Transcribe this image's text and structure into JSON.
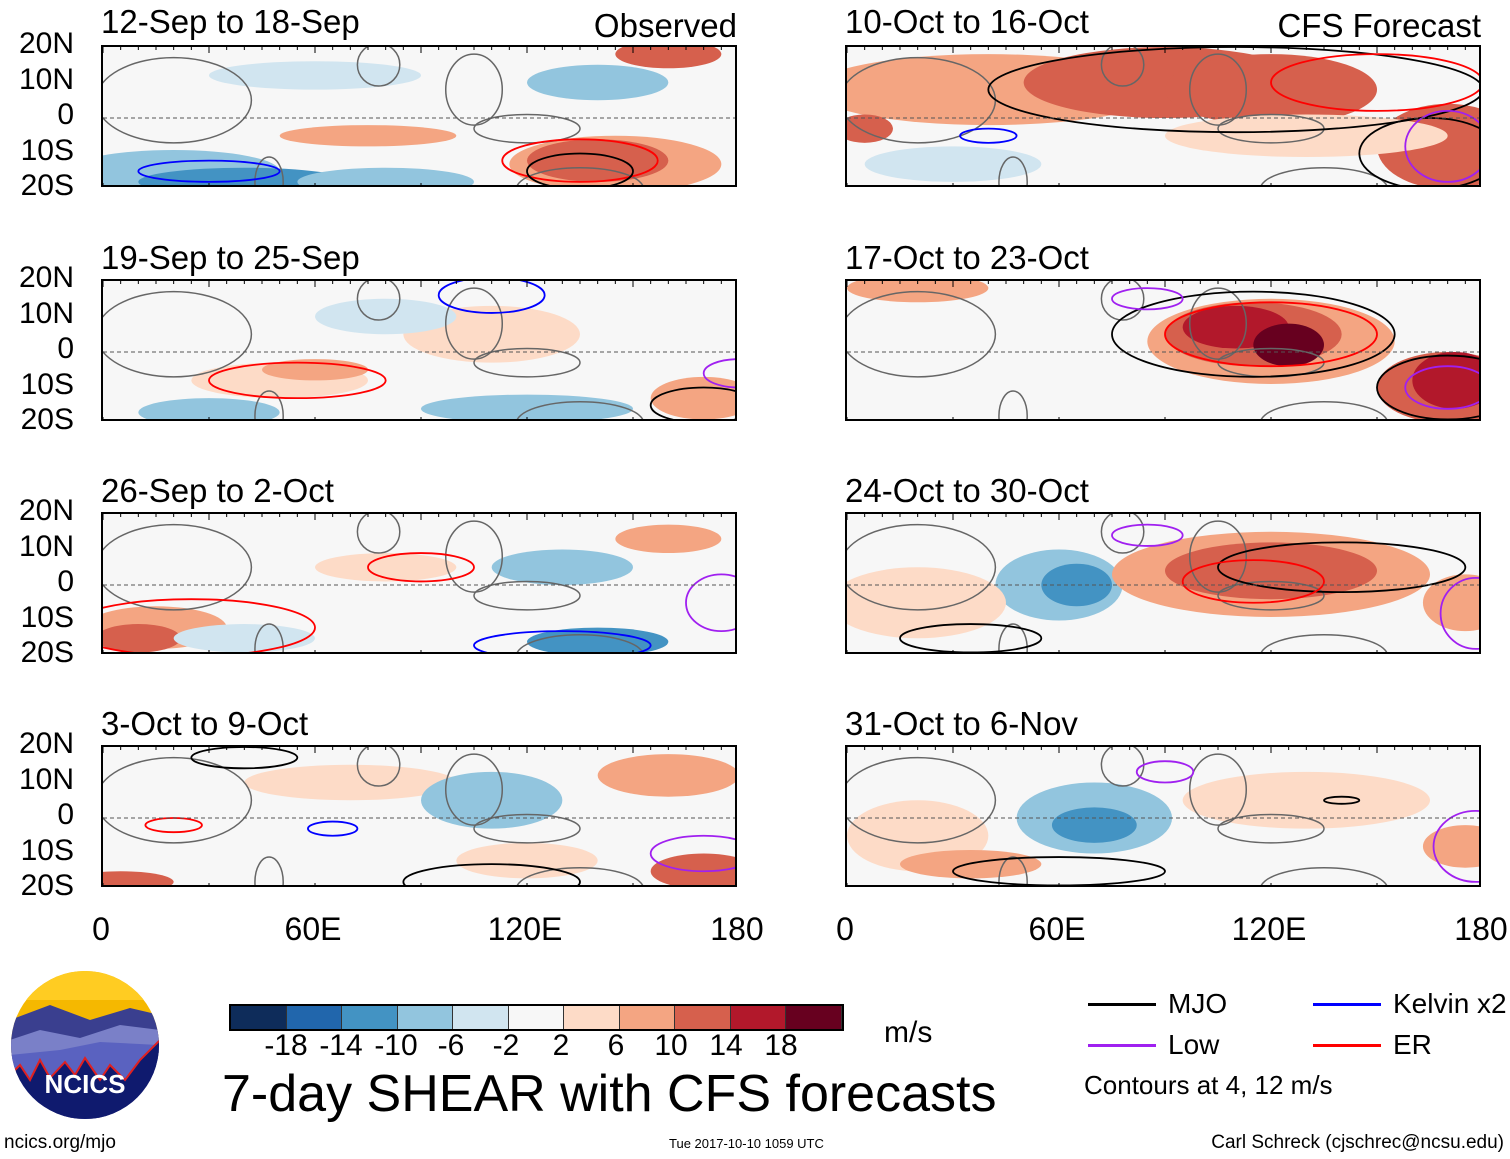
{
  "chart_data": {
    "type": "heatmap",
    "title": "7-day SHEAR with CFS forecasts",
    "units": "m/s",
    "panels": [
      {
        "title": "12-Sep to 18-Sep",
        "label": "Observed"
      },
      {
        "title": "19-Sep to 25-Sep",
        "label": ""
      },
      {
        "title": "26-Sep to 2-Oct",
        "label": ""
      },
      {
        "title": "3-Oct to 9-Oct",
        "label": ""
      },
      {
        "title": "10-Oct to 16-Oct",
        "label": "CFS Forecast"
      },
      {
        "title": "17-Oct to 23-Oct",
        "label": ""
      },
      {
        "title": "24-Oct to 30-Oct",
        "label": ""
      },
      {
        "title": "31-Oct to 6-Nov",
        "label": ""
      }
    ],
    "y_ticks": [
      "20N",
      "10N",
      "0",
      "10S",
      "20S"
    ],
    "x_ticks": [
      "0",
      "60E",
      "120E",
      "180"
    ],
    "lon_range": [
      0,
      180
    ],
    "lat_range": [
      -20,
      20
    ],
    "colorbar": {
      "levels": [
        "-18",
        "-14",
        "-10",
        "-6",
        "-2",
        "2",
        "6",
        "10",
        "14",
        "18"
      ],
      "colors": [
        "#0e2c5a",
        "#2166ac",
        "#4393c3",
        "#92c5de",
        "#d1e5f0",
        "#f7f7f7",
        "#fddbc7",
        "#f4a582",
        "#d6604d",
        "#b2182b",
        "#67001f"
      ]
    },
    "legend": [
      {
        "label": "MJO",
        "color": "#000000"
      },
      {
        "label": "Kelvin x2",
        "color": "#0000ff"
      },
      {
        "label": "Low",
        "color": "#a020f0"
      },
      {
        "label": "ER",
        "color": "#ff0000"
      }
    ],
    "contour_note": "Contours at 4, 12 m/s"
  },
  "footer": {
    "logo_text": "NCICS",
    "site": "ncics.org/mjo",
    "timestamp": "Tue 2017-10-10 1059 UTC",
    "author": "Carl Schreck (cjschrec@ncsu.edu)"
  }
}
